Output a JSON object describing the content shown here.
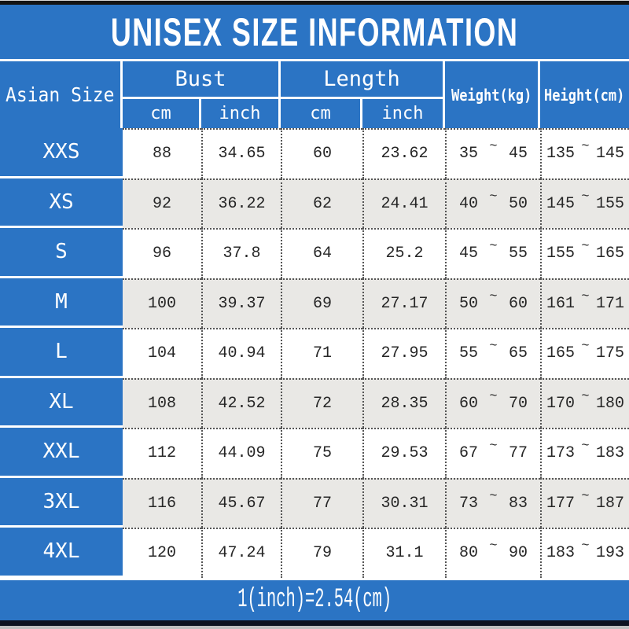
{
  "title": "UNISEX SIZE INFORMATION",
  "colors": {
    "blue": "#2b74c4",
    "alt_row_gray": "#e9e8e5",
    "text_dark": "#262626",
    "top_bar": "#141414",
    "bottom_bar": "#0d1220"
  },
  "table": {
    "header": {
      "size_col": "Asian Size",
      "bust": "Bust",
      "length": "Length",
      "cm": "cm",
      "inch": "inch",
      "weight": "Weight(kg)",
      "height": "Height(cm)"
    },
    "tilde": "~",
    "rows": [
      {
        "size": "XXS",
        "bust_cm": "88",
        "bust_inch": "34.65",
        "length_cm": "60",
        "length_inch": "23.62",
        "weight_min": "35",
        "weight_max": "45",
        "height_min": "135",
        "height_max": "145"
      },
      {
        "size": "XS",
        "bust_cm": "92",
        "bust_inch": "36.22",
        "length_cm": "62",
        "length_inch": "24.41",
        "weight_min": "40",
        "weight_max": "50",
        "height_min": "145",
        "height_max": "155"
      },
      {
        "size": "S",
        "bust_cm": "96",
        "bust_inch": "37.8",
        "length_cm": "64",
        "length_inch": "25.2",
        "weight_min": "45",
        "weight_max": "55",
        "height_min": "155",
        "height_max": "165"
      },
      {
        "size": "M",
        "bust_cm": "100",
        "bust_inch": "39.37",
        "length_cm": "69",
        "length_inch": "27.17",
        "weight_min": "50",
        "weight_max": "60",
        "height_min": "161",
        "height_max": "171"
      },
      {
        "size": "L",
        "bust_cm": "104",
        "bust_inch": "40.94",
        "length_cm": "71",
        "length_inch": "27.95",
        "weight_min": "55",
        "weight_max": "65",
        "height_min": "165",
        "height_max": "175"
      },
      {
        "size": "XL",
        "bust_cm": "108",
        "bust_inch": "42.52",
        "length_cm": "72",
        "length_inch": "28.35",
        "weight_min": "60",
        "weight_max": "70",
        "height_min": "170",
        "height_max": "180"
      },
      {
        "size": "XXL",
        "bust_cm": "112",
        "bust_inch": "44.09",
        "length_cm": "75",
        "length_inch": "29.53",
        "weight_min": "67",
        "weight_max": "77",
        "height_min": "173",
        "height_max": "183"
      },
      {
        "size": "3XL",
        "bust_cm": "116",
        "bust_inch": "45.67",
        "length_cm": "77",
        "length_inch": "30.31",
        "weight_min": "73",
        "weight_max": "83",
        "height_min": "177",
        "height_max": "187"
      },
      {
        "size": "4XL",
        "bust_cm": "120",
        "bust_inch": "47.24",
        "length_cm": "79",
        "length_inch": "31.1",
        "weight_min": "80",
        "weight_max": "90",
        "height_min": "183",
        "height_max": "193"
      }
    ]
  },
  "footer": {
    "note": "1(inch)=2.54(cm)"
  },
  "chart_data": {
    "type": "table",
    "title": "UNISEX SIZE INFORMATION",
    "columns": [
      "Asian Size",
      "Bust cm",
      "Bust inch",
      "Length cm",
      "Length inch",
      "Weight(kg)",
      "Height(cm)"
    ],
    "rows": [
      [
        "XXS",
        88,
        34.65,
        60,
        23.62,
        "35~45",
        "135~145"
      ],
      [
        "XS",
        92,
        36.22,
        62,
        24.41,
        "40~50",
        "145~155"
      ],
      [
        "S",
        96,
        37.8,
        64,
        25.2,
        "45~55",
        "155~165"
      ],
      [
        "M",
        100,
        39.37,
        69,
        27.17,
        "50~60",
        "161~171"
      ],
      [
        "L",
        104,
        40.94,
        71,
        27.95,
        "55~65",
        "165~175"
      ],
      [
        "XL",
        108,
        42.52,
        72,
        28.35,
        "60~70",
        "170~180"
      ],
      [
        "XXL",
        112,
        44.09,
        75,
        29.53,
        "67~77",
        "173~183"
      ],
      [
        "3XL",
        116,
        45.67,
        77,
        30.31,
        "73~83",
        "177~187"
      ],
      [
        "4XL",
        120,
        47.24,
        79,
        31.1,
        "80~90",
        "183~193"
      ]
    ],
    "note": "1(inch)=2.54(cm)",
    "layout": {
      "header_rows": 2,
      "grouped_columns": [
        "Bust",
        "Length"
      ],
      "alternating_row_shading": true
    }
  }
}
